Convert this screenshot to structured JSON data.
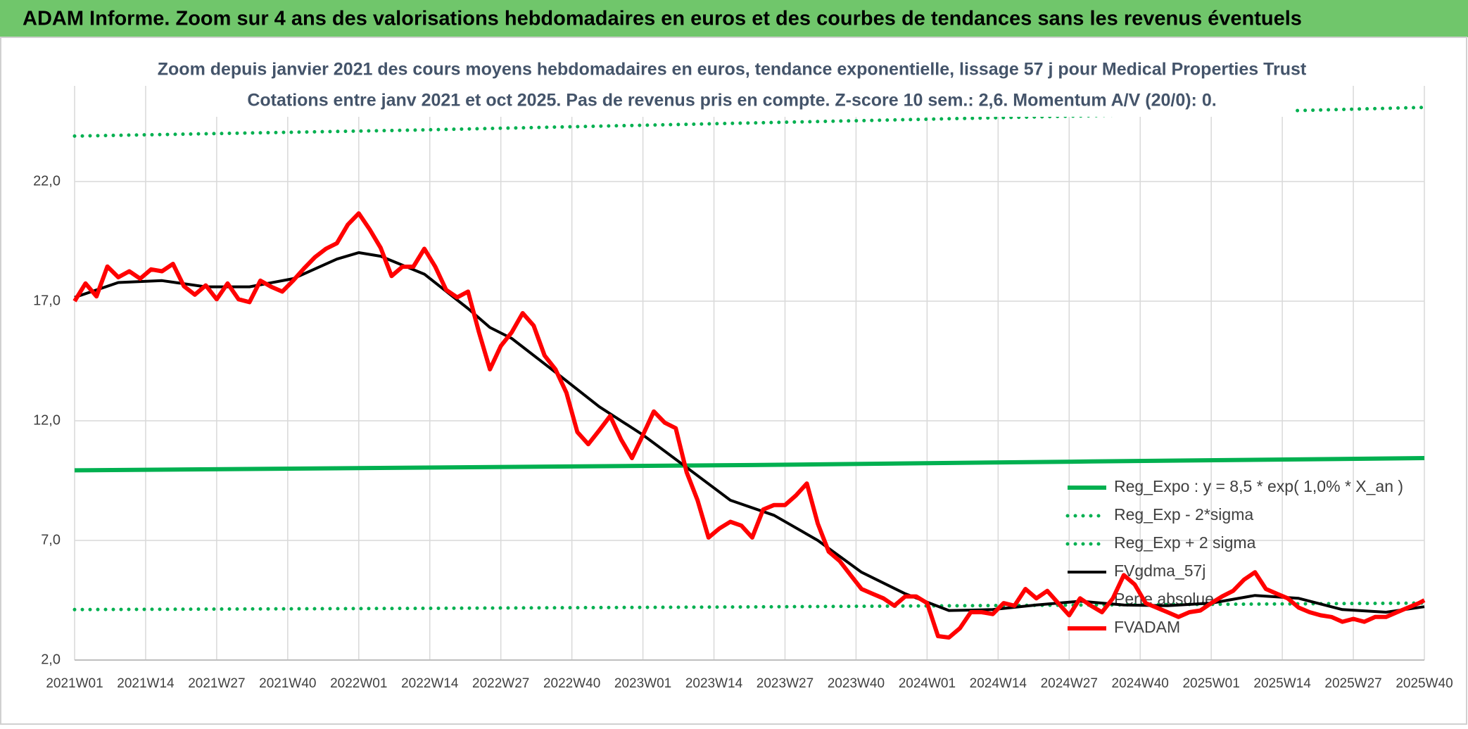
{
  "header": {
    "title": "ADAM Informe. Zoom sur 4 ans des valorisations hebdomadaires en euros et des courbes de tendances sans les revenus éventuels"
  },
  "chart_data": {
    "type": "line",
    "title": "Zoom depuis janvier 2021 des cours moyens hebdomadaires en euros, tendance exponentielle, lissage 57 j pour Medical Properties Trust",
    "subtitle": "Cotations entre janv 2021 et oct 2025. Pas de revenus pris en compte. Z-score 10 sem.: 2,6. Momentum A/V (20/0): 0.",
    "xlim": [
      0,
      247
    ],
    "xticks": [
      {
        "value": 0,
        "label": "2021W01"
      },
      {
        "value": 13,
        "label": "2021W14"
      },
      {
        "value": 26,
        "label": "2021W27"
      },
      {
        "value": 39,
        "label": "2021W40"
      },
      {
        "value": 52,
        "label": "2022W01"
      },
      {
        "value": 65,
        "label": "2022W14"
      },
      {
        "value": 78,
        "label": "2022W27"
      },
      {
        "value": 91,
        "label": "2022W40"
      },
      {
        "value": 104,
        "label": "2023W01"
      },
      {
        "value": 117,
        "label": "2023W14"
      },
      {
        "value": 130,
        "label": "2023W27"
      },
      {
        "value": 143,
        "label": "2023W40"
      },
      {
        "value": 156,
        "label": "2024W01"
      },
      {
        "value": 169,
        "label": "2024W14"
      },
      {
        "value": 182,
        "label": "2024W27"
      },
      {
        "value": 195,
        "label": "2024W40"
      },
      {
        "value": 208,
        "label": "2025W01"
      },
      {
        "value": 221,
        "label": "2025W14"
      },
      {
        "value": 234,
        "label": "2025W27"
      },
      {
        "value": 247,
        "label": "2025W40"
      }
    ],
    "ylim": [
      2,
      26
    ],
    "yticks": [
      {
        "value": 2,
        "label": "2,0"
      },
      {
        "value": 7,
        "label": "7,0"
      },
      {
        "value": 12,
        "label": "12,0"
      },
      {
        "value": 17,
        "label": "17,0"
      },
      {
        "value": 22,
        "label": "22,0"
      }
    ],
    "grid": true,
    "legend": "right",
    "series": [
      {
        "name": "Reg_Expo : y = 8,5 * exp( 1,0% *  X_an )",
        "color": "#00b050",
        "dash": "solid",
        "x": [
          0,
          62,
          124,
          186,
          247
        ],
        "values": [
          9.93,
          10.04,
          10.15,
          10.3,
          10.44
        ]
      },
      {
        "name": "Reg_Exp - 2*sigma",
        "color": "#00b050",
        "dash": "dotted",
        "x": [
          0,
          62,
          124,
          186,
          247
        ],
        "values": [
          4.11,
          4.16,
          4.22,
          4.3,
          4.38
        ]
      },
      {
        "name": "Reg_Exp + 2 sigma",
        "color": "#00b050",
        "dash": "dotted",
        "x": [
          0,
          62,
          124,
          186,
          247
        ],
        "values": [
          23.9,
          24.15,
          24.45,
          24.75,
          25.1
        ]
      },
      {
        "name": "FVgdma_57j",
        "color": "#000000",
        "dash": "solid",
        "x": [
          0,
          8,
          16,
          24,
          32,
          40,
          48,
          52,
          56,
          64,
          72,
          76,
          80,
          88,
          96,
          104,
          112,
          120,
          128,
          136,
          144,
          152,
          160,
          168,
          176,
          184,
          192,
          200,
          208,
          216,
          224,
          232,
          240,
          247
        ],
        "values": [
          17.16,
          17.78,
          17.86,
          17.6,
          17.6,
          17.94,
          18.76,
          19.03,
          18.88,
          18.13,
          16.69,
          15.9,
          15.44,
          14.03,
          12.59,
          11.41,
          10.05,
          8.68,
          8.05,
          7.0,
          5.67,
          4.77,
          4.07,
          4.11,
          4.3,
          4.46,
          4.3,
          4.27,
          4.38,
          4.7,
          4.58,
          4.11,
          4.0,
          4.23
        ]
      },
      {
        "name": "Perte absolue",
        "x": [],
        "values": []
      },
      {
        "name": "FVADAM",
        "color": "#ff0000",
        "dash": "solid",
        "x": [
          0,
          2,
          4,
          6,
          8,
          10,
          12,
          14,
          16,
          18,
          20,
          22,
          24,
          26,
          28,
          30,
          32,
          34,
          36,
          38,
          40,
          42,
          44,
          46,
          48,
          50,
          52,
          54,
          56,
          58,
          60,
          62,
          64,
          66,
          68,
          70,
          72,
          74,
          76,
          78,
          80,
          82,
          84,
          86,
          88,
          90,
          92,
          94,
          96,
          98,
          100,
          102,
          104,
          106,
          108,
          110,
          112,
          114,
          116,
          118,
          120,
          122,
          124,
          126,
          128,
          130,
          132,
          134,
          136,
          138,
          140,
          142,
          144,
          146,
          148,
          150,
          152,
          154,
          156,
          158,
          160,
          162,
          164,
          166,
          168,
          170,
          172,
          174,
          176,
          178,
          180,
          182,
          184,
          186,
          188,
          190,
          192,
          194,
          196,
          198,
          200,
          202,
          204,
          206,
          208,
          210,
          212,
          214,
          216,
          218,
          220,
          222,
          224,
          226,
          228,
          230,
          232,
          234,
          236,
          238,
          240,
          242,
          244,
          246,
          247
        ],
        "values": [
          17.0,
          17.74,
          17.2,
          18.45,
          18.0,
          18.25,
          17.94,
          18.33,
          18.25,
          18.56,
          17.63,
          17.27,
          17.66,
          17.08,
          17.74,
          17.08,
          16.96,
          17.86,
          17.6,
          17.4,
          17.86,
          18.37,
          18.84,
          19.19,
          19.42,
          20.2,
          20.67,
          20.0,
          19.23,
          18.05,
          18.44,
          18.44,
          19.19,
          18.44,
          17.47,
          17.16,
          17.4,
          15.7,
          14.15,
          15.13,
          15.7,
          16.5,
          15.98,
          14.73,
          14.15,
          13.17,
          11.53,
          11.02,
          11.6,
          12.2,
          11.22,
          10.44,
          11.41,
          12.39,
          11.92,
          11.69,
          9.85,
          8.68,
          7.12,
          7.5,
          7.78,
          7.62,
          7.12,
          8.29,
          8.48,
          8.48,
          8.88,
          9.38,
          7.7,
          6.53,
          6.14,
          5.55,
          4.97,
          4.77,
          4.58,
          4.27,
          4.66,
          4.66,
          4.38,
          3.0,
          2.94,
          3.33,
          4.0,
          4.0,
          3.92,
          4.38,
          4.27,
          4.97,
          4.58,
          4.89,
          4.38,
          3.87,
          4.58,
          4.27,
          4.0,
          4.58,
          5.55,
          5.16,
          4.38,
          4.19,
          4.0,
          3.8,
          4.0,
          4.07,
          4.38,
          4.66,
          4.89,
          5.36,
          5.67,
          4.97,
          4.77,
          4.58,
          4.19,
          4.0,
          3.87,
          3.8,
          3.6,
          3.72,
          3.6,
          3.8,
          3.8,
          4.0,
          4.19,
          4.38,
          4.5
        ]
      }
    ]
  }
}
